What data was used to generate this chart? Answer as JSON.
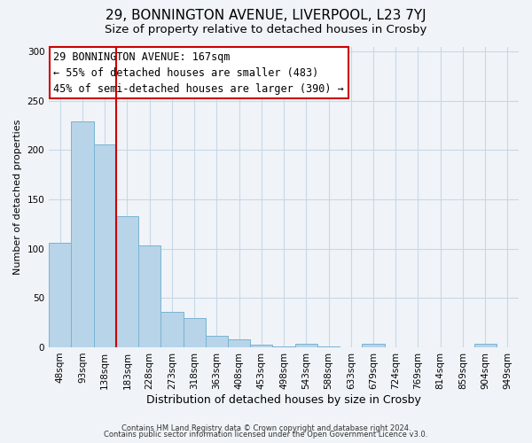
{
  "title": "29, BONNINGTON AVENUE, LIVERPOOL, L23 7YJ",
  "subtitle": "Size of property relative to detached houses in Crosby",
  "xlabel": "Distribution of detached houses by size in Crosby",
  "ylabel": "Number of detached properties",
  "bar_labels": [
    "48sqm",
    "93sqm",
    "138sqm",
    "183sqm",
    "228sqm",
    "273sqm",
    "318sqm",
    "363sqm",
    "408sqm",
    "453sqm",
    "498sqm",
    "543sqm",
    "588sqm",
    "633sqm",
    "679sqm",
    "724sqm",
    "769sqm",
    "814sqm",
    "859sqm",
    "904sqm",
    "949sqm"
  ],
  "bar_values": [
    106,
    229,
    206,
    133,
    103,
    36,
    30,
    12,
    8,
    3,
    1,
    4,
    1,
    0,
    4,
    0,
    0,
    0,
    0,
    4,
    0
  ],
  "bar_color": "#b8d4e8",
  "bar_edge_color": "#7ab3d3",
  "property_line_x": 2.5,
  "property_line_color": "#cc0000",
  "ylim": [
    0,
    305
  ],
  "yticks": [
    0,
    50,
    100,
    150,
    200,
    250,
    300
  ],
  "annotation_title": "29 BONNINGTON AVENUE: 167sqm",
  "annotation_line1": "← 55% of detached houses are smaller (483)",
  "annotation_line2": "45% of semi-detached houses are larger (390) →",
  "annotation_box_color": "#ffffff",
  "annotation_box_edge": "#cc0000",
  "footer_line1": "Contains HM Land Registry data © Crown copyright and database right 2024.",
  "footer_line2": "Contains public sector information licensed under the Open Government Licence v3.0.",
  "background_color": "#f0f4f8",
  "grid_color": "#c8d8e8",
  "title_fontsize": 11,
  "subtitle_fontsize": 9.5,
  "xlabel_fontsize": 9,
  "ylabel_fontsize": 8,
  "tick_fontsize": 7.5,
  "annot_fontsize": 8.5,
  "footer_fontsize": 6
}
